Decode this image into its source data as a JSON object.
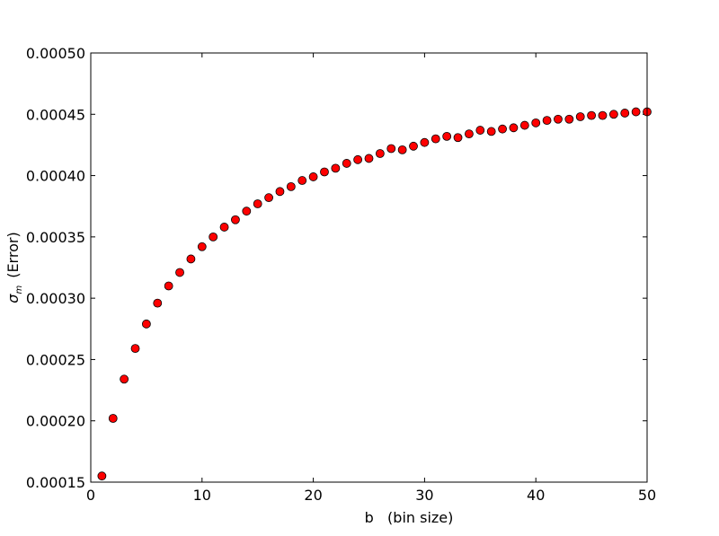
{
  "chart_data": {
    "type": "scatter",
    "xlabel": "b   (bin size)",
    "ylabel_symbol": "σ",
    "ylabel_subscript": "m",
    "ylabel_text": "(Error)",
    "xlim": [
      0,
      50
    ],
    "ylim": [
      0.00015,
      0.0005
    ],
    "x_ticks": [
      0,
      10,
      20,
      30,
      40,
      50
    ],
    "x_tick_labels": [
      "0",
      "10",
      "20",
      "30",
      "40",
      "50"
    ],
    "y_ticks": [
      0.00015,
      0.0002,
      0.00025,
      0.0003,
      0.00035,
      0.0004,
      0.00045,
      0.0005
    ],
    "y_tick_labels": [
      "0.00015",
      "0.00020",
      "0.00025",
      "0.00030",
      "0.00035",
      "0.00040",
      "0.00045",
      "0.00050"
    ],
    "grid": false,
    "marker_color": "#ff0000",
    "marker_edge_color": "#000000",
    "x": [
      1,
      2,
      3,
      4,
      5,
      6,
      7,
      8,
      9,
      10,
      11,
      12,
      13,
      14,
      15,
      16,
      17,
      18,
      19,
      20,
      21,
      22,
      23,
      24,
      25,
      26,
      27,
      28,
      29,
      30,
      31,
      32,
      33,
      34,
      35,
      36,
      37,
      38,
      39,
      40,
      41,
      42,
      43,
      44,
      45,
      46,
      47,
      48,
      49,
      50
    ],
    "y": [
      0.000155,
      0.000202,
      0.000234,
      0.000259,
      0.000279,
      0.000296,
      0.00031,
      0.000321,
      0.000332,
      0.000342,
      0.00035,
      0.000358,
      0.000364,
      0.000371,
      0.000377,
      0.000382,
      0.000387,
      0.000391,
      0.000396,
      0.000399,
      0.000403,
      0.000406,
      0.00041,
      0.000413,
      0.000414,
      0.000418,
      0.000422,
      0.000421,
      0.000424,
      0.000427,
      0.00043,
      0.000432,
      0.000431,
      0.000434,
      0.000437,
      0.000436,
      0.000438,
      0.000439,
      0.000441,
      0.000443,
      0.000445,
      0.000446,
      0.000446,
      0.000448,
      0.000449,
      0.000449,
      0.00045,
      0.000451,
      0.000452,
      0.000452
    ]
  }
}
